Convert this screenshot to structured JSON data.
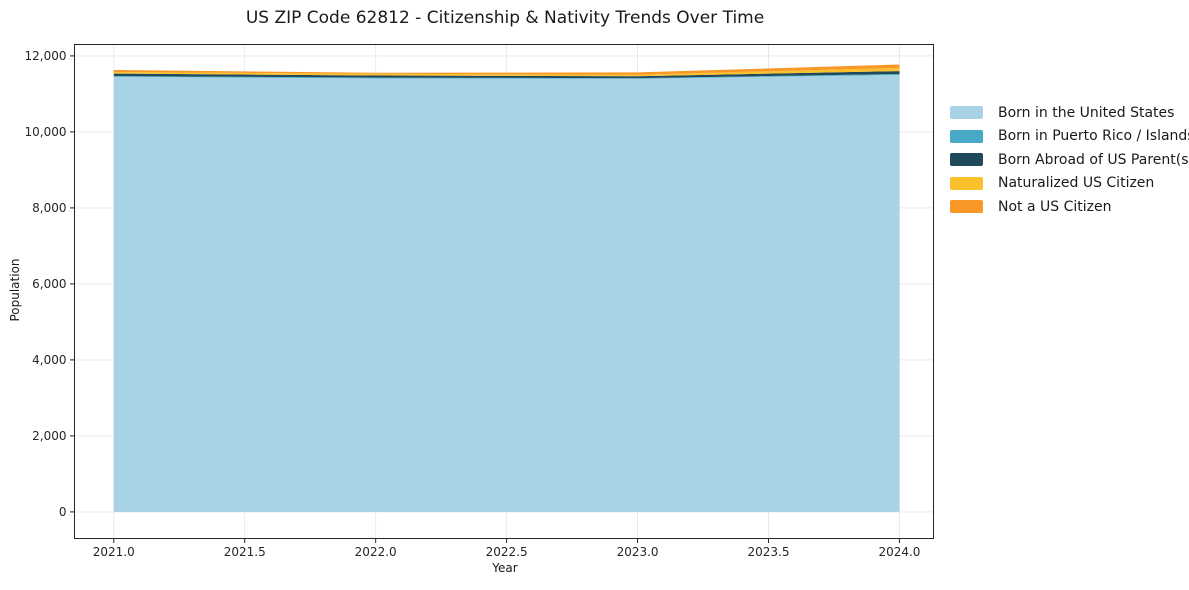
{
  "chart_data": {
    "type": "area",
    "stacked": true,
    "title": "US ZIP Code 62812 - Citizenship & Nativity Trends Over Time",
    "xlabel": "Year",
    "ylabel": "Population",
    "x": [
      2021,
      2022,
      2023,
      2024
    ],
    "series": [
      {
        "name": "Born in the United States",
        "color": "#A8D2E6",
        "values": [
          11450,
          11410,
          11400,
          11500
        ]
      },
      {
        "name": "Born in Puerto Rico / Islands",
        "color": "#47A9C6",
        "values": [
          20,
          20,
          15,
          25
        ]
      },
      {
        "name": "Born Abroad of US Parent(s)",
        "color": "#21495C",
        "values": [
          65,
          55,
          50,
          75
        ]
      },
      {
        "name": "Naturalized US Citizen",
        "color": "#FBC12D",
        "values": [
          40,
          45,
          40,
          85
        ]
      },
      {
        "name": "Not a US Citizen",
        "color": "#F89827",
        "values": [
          55,
          25,
          60,
          90
        ]
      }
    ],
    "x_ticks": {
      "values": [
        2021.0,
        2021.5,
        2022.0,
        2022.5,
        2023.0,
        2023.5,
        2024.0
      ],
      "labels": [
        "2021.0",
        "2021.5",
        "2022.0",
        "2022.5",
        "2023.0",
        "2023.5",
        "2024.0"
      ]
    },
    "y_ticks": {
      "values": [
        0,
        2000,
        4000,
        6000,
        8000,
        10000,
        12000
      ],
      "labels": [
        "0",
        "2,000",
        "4,000",
        "6,000",
        "8,000",
        "10,000",
        "12,000"
      ]
    },
    "xlim": [
      2020.85,
      2024.13
    ],
    "ylim": [
      -700,
      12300
    ],
    "grid": true,
    "legend_position": "outside-right",
    "text_color": "#262626",
    "grid_color": "#e7e7e7"
  }
}
